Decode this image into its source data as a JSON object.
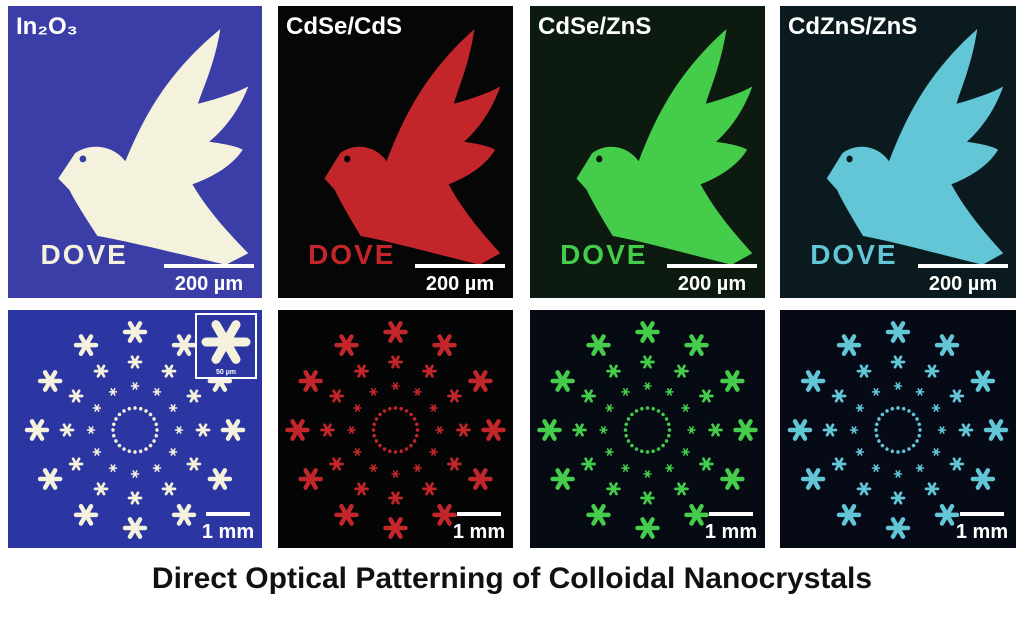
{
  "title": "Direct Optical Patterning of Colloidal Nanocrystals",
  "top_row": [
    {
      "label": "In₂O₃",
      "pattern_text": "DOVE",
      "scale": "200 µm"
    },
    {
      "label": "CdSe/CdS",
      "pattern_text": "DOVE",
      "scale": "200 µm"
    },
    {
      "label": "CdSe/ZnS",
      "pattern_text": "DOVE",
      "scale": "200 µm"
    },
    {
      "label": "CdZnS/ZnS",
      "pattern_text": "DOVE",
      "scale": "200 µm"
    }
  ],
  "bottom_row": [
    {
      "scale": "1 mm",
      "inset_scale": "50 µm"
    },
    {
      "scale": "1 mm"
    },
    {
      "scale": "1 mm"
    },
    {
      "scale": "1 mm"
    }
  ]
}
